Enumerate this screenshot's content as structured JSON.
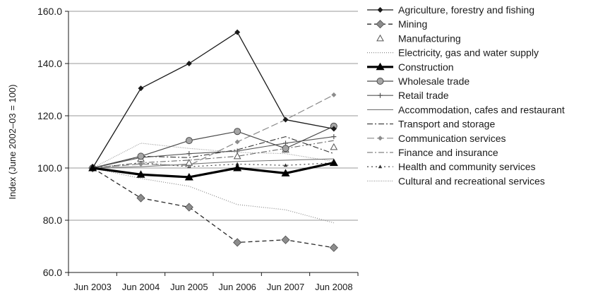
{
  "chart_data": {
    "type": "line",
    "title": "",
    "xlabel": "",
    "ylabel": "Index (June 2002–03 = 100)",
    "categories": [
      "Jun 2003",
      "Jun 2004",
      "Jun 2005",
      "Jun 2006",
      "Jun 2007",
      "Jun 2008"
    ],
    "ylim": [
      60,
      160
    ],
    "yticks": [
      "60.0",
      "80.0",
      "100.0",
      "120.0",
      "140.0",
      "160.0"
    ],
    "grid": "horizontal",
    "legend_position": "right",
    "series": [
      {
        "name": "Agriculture, forestry and fishing",
        "values": [
          100,
          130.5,
          140,
          152,
          118.5,
          115
        ],
        "color": "#1a1a1a",
        "width": 1.3,
        "dash": "",
        "marker": "diamond-filled"
      },
      {
        "name": "Mining",
        "values": [
          100,
          88.5,
          85,
          71.5,
          72.5,
          69.5
        ],
        "color": "#2a2a2a",
        "width": 1.3,
        "dash": "6,4",
        "marker": "diamond-gray"
      },
      {
        "name": "Manufacturing",
        "values": [
          100,
          103.5,
          102,
          104.5,
          107,
          108
        ],
        "color": "#555555",
        "width": 0,
        "dash": "",
        "marker": "triangle-open"
      },
      {
        "name": "Electricity, gas and water supply",
        "values": [
          100,
          96,
          93,
          86,
          84,
          79
        ],
        "color": "#8a8a8a",
        "width": 1.2,
        "dash": "1,2",
        "marker": "none"
      },
      {
        "name": "Construction",
        "values": [
          100,
          97.5,
          96.5,
          100,
          98,
          102
        ],
        "color": "#000000",
        "width": 3.2,
        "dash": "",
        "marker": "triangle-filled"
      },
      {
        "name": "Wholesale trade",
        "values": [
          100,
          104.5,
          110.5,
          114,
          107.5,
          116
        ],
        "color": "#4a4a4a",
        "width": 1.2,
        "dash": "",
        "marker": "circle-gray"
      },
      {
        "name": "Retail trade",
        "values": [
          100,
          104,
          105.5,
          106.5,
          109.5,
          112
        ],
        "color": "#555555",
        "width": 1.1,
        "dash": "",
        "marker": "plus"
      },
      {
        "name": "Accommodation, cafes and restaurant",
        "values": [
          100,
          100.5,
          101.5,
          102.5,
          103,
          103.5
        ],
        "color": "#777777",
        "width": 1.1,
        "dash": "",
        "marker": "none"
      },
      {
        "name": "Transport and storage",
        "values": [
          100,
          104.5,
          104,
          107,
          112,
          105.5
        ],
        "color": "#333333",
        "width": 1.1,
        "dash": "8,3,2,3",
        "marker": "none"
      },
      {
        "name": "Communication services",
        "values": [
          100,
          101.5,
          101,
          110,
          118.5,
          128
        ],
        "color": "#8a8a8a",
        "width": 1.2,
        "dash": "10,4",
        "marker": "diamond-small"
      },
      {
        "name": "Finance and insurance",
        "values": [
          100,
          102,
          103,
          104.5,
          107.5,
          110.5
        ],
        "color": "#666666",
        "width": 1.1,
        "dash": "8,3,2,3",
        "marker": "none"
      },
      {
        "name": "Health and community services",
        "values": [
          100,
          102,
          100.5,
          101.5,
          101,
          102
        ],
        "color": "#333333",
        "width": 1.1,
        "dash": "2,4",
        "marker": "triangle-small"
      },
      {
        "name": "Cultural and recreational services",
        "values": [
          100,
          109.5,
          107.5,
          106,
          105.5,
          102.5
        ],
        "color": "#999999",
        "width": 1.1,
        "dash": "1,1.5",
        "marker": "none"
      }
    ]
  }
}
